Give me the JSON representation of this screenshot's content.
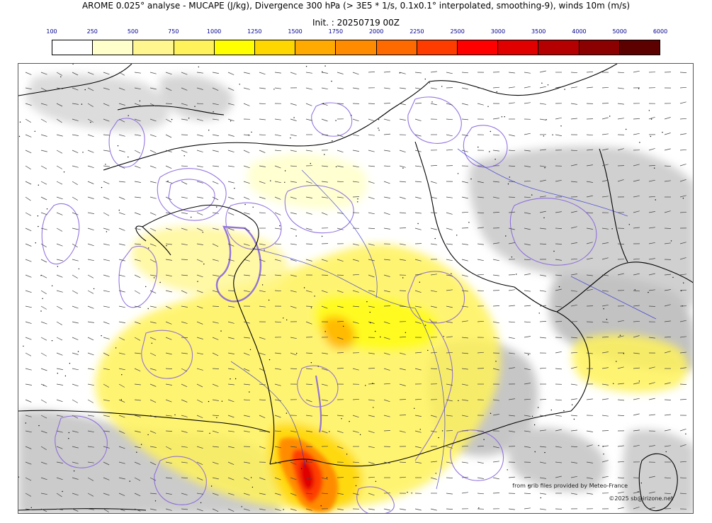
{
  "title": "AROME 0.025° analyse - MUCAPE (J/kg), Divergence 300 hPa (> 3E5 * 1/s, 0.1x0.1° interpolated, smoothing-9), winds 10m (m/s)",
  "subtitle": "Init. : 20250719 00Z",
  "colorbar": {
    "ticks": [
      "100",
      "250",
      "500",
      "750",
      "1000",
      "1250",
      "1500",
      "1750",
      "2000",
      "2250",
      "2500",
      "3000",
      "3500",
      "4000",
      "5000",
      "6000"
    ],
    "colors": [
      "#ffffff",
      "#ffffcc",
      "#fff68f",
      "#fff25a",
      "#ffff00",
      "#ffd700",
      "#ffaa00",
      "#ff8c00",
      "#ff6a00",
      "#ff3c00",
      "#ff0000",
      "#e00000",
      "#b40000",
      "#8b0000",
      "#5c0000"
    ]
  },
  "map": {
    "legend_colors": {
      "divergence_contours": "#8866dd",
      "coastlines_borders": "#000000",
      "rivers": "#2b2bd6",
      "terrain_shading": "#c8c8c8",
      "wind_barbs": "#444444"
    }
  },
  "credits": {
    "source": "from grib files provided by Meteo-France",
    "copyright": "©2025 sb@irizone.net"
  }
}
